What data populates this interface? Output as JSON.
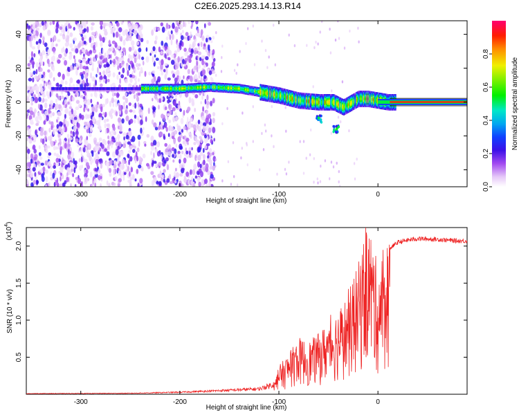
{
  "figure": {
    "title": "C2E6.2025.293.14.13.R14"
  },
  "chart_data": [
    {
      "type": "heatmap",
      "name": "spectrogram",
      "xlabel": "Height of straight line (km)",
      "ylabel": "Frequency (Hz)",
      "xlim": [
        -355,
        90
      ],
      "ylim": [
        -50,
        48
      ],
      "xticks": [
        -300,
        -200,
        -100,
        0
      ],
      "yticks": [
        -40,
        -20,
        0,
        20,
        40
      ],
      "colorbar": {
        "label": "Normalized spectral amplitude",
        "range": [
          0,
          1
        ],
        "ticks": [
          0.0,
          0.2,
          0.4,
          0.6,
          0.8
        ],
        "tick_labels": [
          "0.0",
          "0.2",
          "0.4",
          "0.6",
          "0.8"
        ]
      },
      "ridge": {
        "description_points_km_hz": [
          [
            -320,
            8
          ],
          [
            -240,
            8
          ],
          [
            -200,
            8
          ],
          [
            -170,
            9
          ],
          [
            -140,
            8
          ],
          [
            -120,
            6
          ],
          [
            -100,
            4
          ],
          [
            -80,
            1
          ],
          [
            -60,
            0
          ],
          [
            -45,
            0
          ],
          [
            -35,
            -3
          ],
          [
            -20,
            2
          ],
          [
            -10,
            2
          ],
          [
            0,
            1
          ],
          [
            10,
            0
          ],
          [
            90,
            0
          ]
        ],
        "side_blobs_km_hz": [
          [
            -60,
            -10
          ],
          [
            -42,
            -16
          ]
        ]
      },
      "noise_region_km": [
        -355,
        -165
      ],
      "gap_region_km": [
        -238,
        -228
      ]
    },
    {
      "type": "line",
      "name": "snr",
      "xlabel": "Height of straight line (km)",
      "ylabel": "SNR (10 * v/v)",
      "multiplier_label": "(x10",
      "multiplier_exp": "4",
      "multiplier_close": ")",
      "xlim": [
        -355,
        90
      ],
      "ylim": [
        0,
        22500
      ],
      "xticks": [
        -300,
        -200,
        -100,
        0
      ],
      "yticks": [
        5000,
        10000,
        15000,
        20000
      ],
      "ytick_labels": [
        "0.5",
        "1.0",
        "1.5",
        "2.0"
      ],
      "series": [
        {
          "name": "SNR",
          "color": "#ee2222",
          "envelope_km_snr": [
            [
              -355,
              100
            ],
            [
              -250,
              150
            ],
            [
              -200,
              300
            ],
            [
              -150,
              600
            ],
            [
              -120,
              800
            ],
            [
              -105,
              1500
            ],
            [
              -100,
              3500
            ],
            [
              -90,
              5000
            ],
            [
              -80,
              7000
            ],
            [
              -70,
              6500
            ],
            [
              -60,
              7500
            ],
            [
              -50,
              9000
            ],
            [
              -40,
              10500
            ],
            [
              -30,
              12500
            ],
            [
              -20,
              16000
            ],
            [
              -15,
              19000
            ],
            [
              -10,
              21500
            ],
            [
              -5,
              19000
            ],
            [
              0,
              15500
            ],
            [
              5,
              17500
            ],
            [
              10,
              19500
            ],
            [
              20,
              20500
            ],
            [
              30,
              20800
            ],
            [
              40,
              21000
            ],
            [
              60,
              20900
            ],
            [
              80,
              20700
            ],
            [
              90,
              20700
            ]
          ]
        }
      ]
    }
  ]
}
